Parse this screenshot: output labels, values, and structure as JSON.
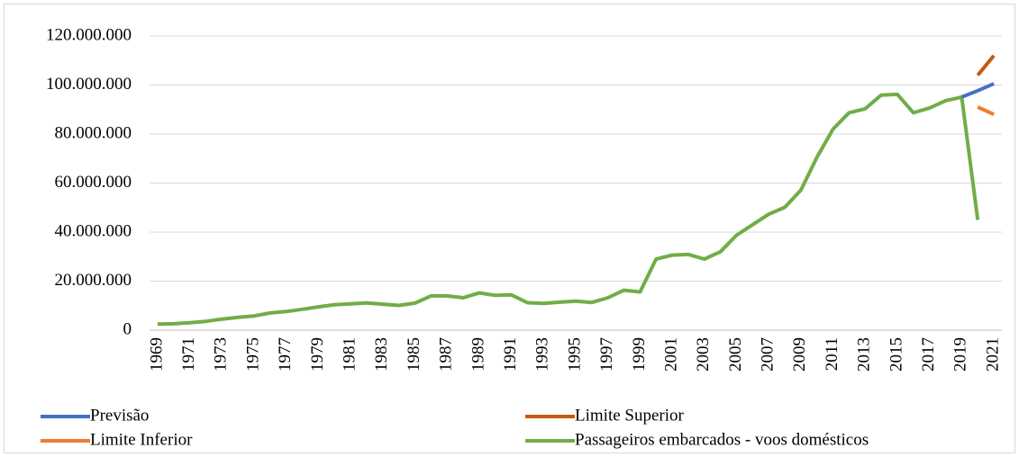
{
  "chart_data": {
    "type": "line",
    "categories": [
      "1969",
      null,
      "1971",
      null,
      "1973",
      null,
      "1975",
      null,
      "1977",
      null,
      "1979",
      null,
      "1981",
      null,
      "1983",
      null,
      "1985",
      null,
      "1987",
      null,
      "1989",
      null,
      "1991",
      null,
      "1993",
      null,
      "1995",
      null,
      "1997",
      null,
      "1999",
      null,
      "2001",
      null,
      "2003",
      null,
      "2005",
      null,
      "2007",
      null,
      "2009",
      null,
      "2011",
      null,
      "2013",
      null,
      "2015",
      null,
      "2017",
      null,
      "2019",
      null,
      "2021"
    ],
    "series": [
      {
        "name": "Previsão",
        "color": "#4472c4",
        "values": [
          null,
          null,
          null,
          null,
          null,
          null,
          null,
          null,
          null,
          null,
          null,
          null,
          null,
          null,
          null,
          null,
          null,
          null,
          null,
          null,
          null,
          null,
          null,
          null,
          null,
          null,
          null,
          null,
          null,
          null,
          null,
          null,
          null,
          null,
          null,
          null,
          null,
          null,
          null,
          null,
          null,
          null,
          null,
          null,
          null,
          null,
          null,
          null,
          null,
          null,
          95100000,
          97700000,
          100500000
        ]
      },
      {
        "name": "Limite Superior",
        "color": "#c55a11",
        "values": [
          null,
          null,
          null,
          null,
          null,
          null,
          null,
          null,
          null,
          null,
          null,
          null,
          null,
          null,
          null,
          null,
          null,
          null,
          null,
          null,
          null,
          null,
          null,
          null,
          null,
          null,
          null,
          null,
          null,
          null,
          null,
          null,
          null,
          null,
          null,
          null,
          null,
          null,
          null,
          null,
          null,
          null,
          null,
          null,
          null,
          null,
          null,
          null,
          null,
          null,
          null,
          104000000,
          112000000
        ]
      },
      {
        "name": "Limite Inferior",
        "color": "#ed7d31",
        "values": [
          null,
          null,
          null,
          null,
          null,
          null,
          null,
          null,
          null,
          null,
          null,
          null,
          null,
          null,
          null,
          null,
          null,
          null,
          null,
          null,
          null,
          null,
          null,
          null,
          null,
          null,
          null,
          null,
          null,
          null,
          null,
          null,
          null,
          null,
          null,
          null,
          null,
          null,
          null,
          null,
          null,
          null,
          null,
          null,
          null,
          null,
          null,
          null,
          null,
          null,
          null,
          91000000,
          88000000
        ]
      },
      {
        "name": "Passageiros embarcados - voos domésticos",
        "color": "#70ad47",
        "values": [
          2500000,
          2600000,
          3000000,
          3600000,
          4500000,
          5200000,
          5800000,
          7000000,
          7600000,
          8500000,
          9500000,
          10400000,
          10700000,
          11100000,
          10600000,
          10100000,
          11000000,
          14000000,
          14000000,
          13200000,
          15200000,
          14200000,
          14400000,
          11200000,
          10900000,
          11400000,
          11800000,
          11300000,
          13200000,
          16300000,
          15600000,
          29000000,
          30600000,
          30900000,
          29000000,
          32000000,
          38700000,
          43000000,
          47300000,
          50100000,
          57100000,
          70500000,
          82000000,
          88700000,
          90300000,
          95900000,
          96200000,
          88700000,
          90600000,
          93600000,
          95100000,
          45000000,
          null
        ]
      }
    ],
    "ylim": [
      0,
      120000000
    ],
    "yticks": [
      0,
      {
        "value": 20000000,
        "label": "20.000.000"
      },
      {
        "value": 40000000,
        "label": "40.000.000"
      },
      {
        "value": 60000000,
        "label": "60.000.000"
      },
      {
        "value": 80000000,
        "label": "80.000.000"
      },
      {
        "value": 100000000,
        "label": "100.000.000"
      },
      {
        "value": 120000000,
        "label": "120.000.000"
      }
    ],
    "grid": true
  }
}
